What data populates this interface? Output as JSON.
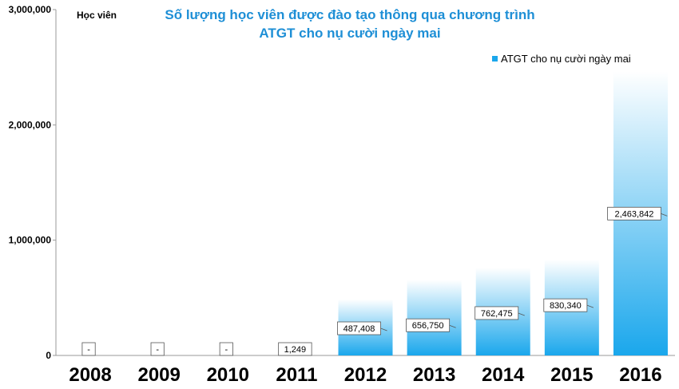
{
  "chart_data": {
    "type": "bar",
    "title_line1": "Số lượng học viên được đào tạo thông qua chương trình",
    "title_line2": "ATGT cho nụ cười ngày mai",
    "ylabel": "Học viên",
    "categories": [
      "2008",
      "2009",
      "2010",
      "2011",
      "2012",
      "2013",
      "2014",
      "2015",
      "2016"
    ],
    "series": [
      {
        "name": "ATGT cho nụ cười ngày mai",
        "values": [
          0,
          0,
          0,
          1249,
          487408,
          656750,
          762475,
          830340,
          2463842
        ],
        "labels": [
          "-",
          "-",
          "-",
          "1,249",
          "487,408",
          "656,750",
          "762,475",
          "830,340",
          "2,463,842"
        ]
      }
    ],
    "yticks": [
      "3,000,000",
      "2,000,000",
      "1,000,000",
      "0"
    ],
    "ylim": [
      0,
      3000000
    ],
    "grid": false,
    "legend": "top-right",
    "colors": {
      "bar_top": "#ffffff",
      "bar_bottom": "#1aa7ec",
      "title": "#1e8fd6",
      "legend_marker": "#1aa7ec"
    }
  }
}
